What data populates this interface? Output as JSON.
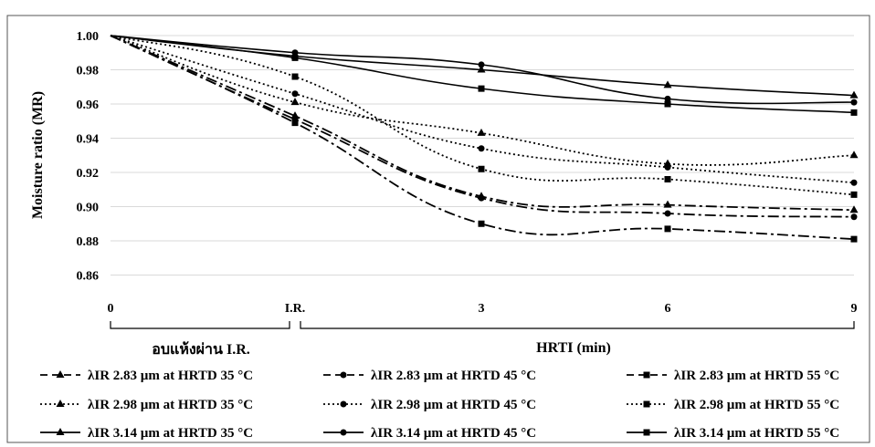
{
  "chart_data": {
    "type": "line",
    "ylabel": "Moisture ratio (MR)",
    "xlabel": "HRTI (min)",
    "ir_group_label": "อบแห้งผ่าน I.R.",
    "x_tick_labels": [
      "0",
      "I.R.",
      "3",
      "6",
      "9"
    ],
    "y_ticks": [
      "1.00",
      "0.98",
      "0.96",
      "0.94",
      "0.92",
      "0.90",
      "0.88",
      "0.86"
    ],
    "ylim": [
      0.85,
      1.0
    ],
    "grid": true,
    "legend_position": "bottom",
    "series": [
      {
        "name": "λIR 2.83 µm at HRTD 35 °C",
        "style": "dashdot",
        "marker": "triangle",
        "values": [
          1.0,
          0.953,
          0.906,
          0.901,
          0.898
        ]
      },
      {
        "name": "λIR 2.83 µm at HRTD 45 °C",
        "style": "dashdot",
        "marker": "circle",
        "values": [
          1.0,
          0.951,
          0.905,
          0.896,
          0.894
        ]
      },
      {
        "name": "λIR 2.83 µm at HRTD 55 °C",
        "style": "dashdot",
        "marker": "square",
        "values": [
          1.0,
          0.949,
          0.89,
          0.887,
          0.881
        ]
      },
      {
        "name": "λIR 2.98 µm at HRTD 35 °C",
        "style": "dotted",
        "marker": "triangle",
        "values": [
          1.0,
          0.961,
          0.943,
          0.925,
          0.93
        ]
      },
      {
        "name": "λIR 2.98 µm at HRTD 45 °C",
        "style": "dotted",
        "marker": "circle",
        "values": [
          1.0,
          0.966,
          0.934,
          0.923,
          0.914
        ]
      },
      {
        "name": "λIR 2.98 µm at HRTD 55 °C",
        "style": "dotted",
        "marker": "square",
        "values": [
          1.0,
          0.976,
          0.922,
          0.916,
          0.907
        ]
      },
      {
        "name": "λIR 3.14 µm at HRTD 35 °C",
        "style": "solid",
        "marker": "triangle",
        "values": [
          1.0,
          0.988,
          0.98,
          0.971,
          0.965
        ]
      },
      {
        "name": "λIR 3.14 µm at HRTD 45 °C",
        "style": "solid",
        "marker": "circle",
        "values": [
          1.0,
          0.99,
          0.983,
          0.963,
          0.961
        ]
      },
      {
        "name": "λIR 3.14 µm at HRTD 55 °C",
        "style": "solid",
        "marker": "square",
        "values": [
          1.0,
          0.987,
          0.969,
          0.96,
          0.955
        ]
      }
    ]
  }
}
